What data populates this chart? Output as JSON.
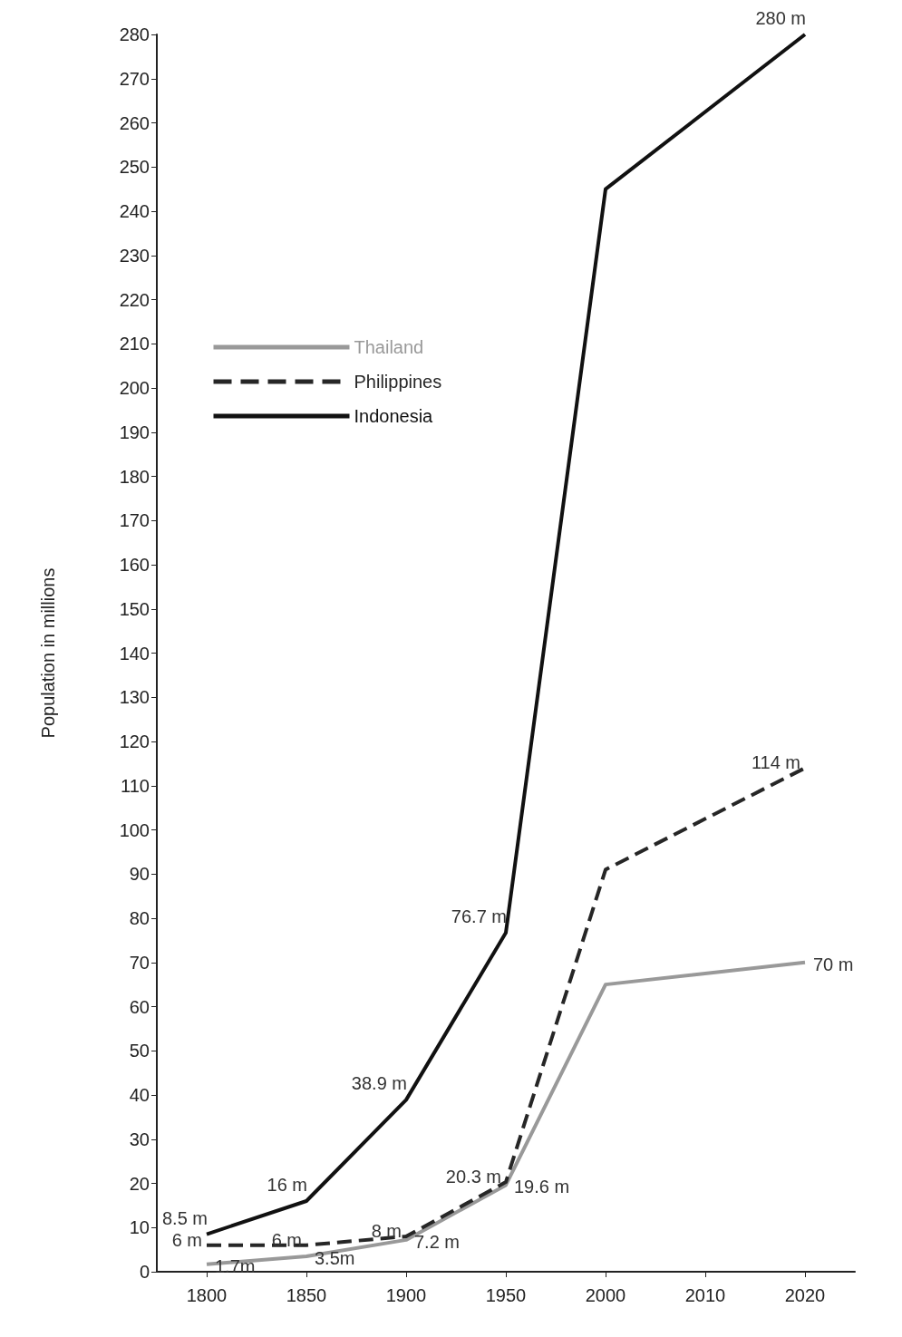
{
  "chart_data": {
    "type": "line",
    "ylabel": "Population in millions",
    "categories": [
      "1800",
      "1850",
      "1900",
      "1950",
      "2000",
      "2010",
      "2020"
    ],
    "series": [
      {
        "name": "Thailand",
        "color": "#999999",
        "line_style": "solid",
        "values": [
          1.7,
          3.5,
          7.2,
          19.6,
          65,
          null,
          70
        ],
        "value_labels": [
          "1.7m",
          "3.5m",
          "7.2 m",
          "19.6 m",
          null,
          null,
          "70 m"
        ]
      },
      {
        "name": "Philippines",
        "color": "#262626",
        "line_style": "dashed",
        "values": [
          6,
          6,
          8,
          20.3,
          91,
          null,
          114
        ],
        "value_labels": [
          "6 m",
          "6 m",
          "8 m",
          "20.3 m",
          null,
          null,
          "114 m"
        ]
      },
      {
        "name": "Indonesia",
        "color": "#111111",
        "line_style": "solid",
        "values": [
          8.5,
          16,
          38.9,
          76.7,
          245,
          null,
          280
        ],
        "value_labels": [
          "8.5 m",
          "16 m",
          "38.9 m",
          "76.7 m",
          null,
          null,
          "280 m"
        ]
      }
    ],
    "ylim": [
      0,
      280
    ],
    "yticks": [
      0,
      10,
      20,
      30,
      40,
      50,
      60,
      70,
      80,
      90,
      100,
      110,
      120,
      130,
      140,
      150,
      160,
      170,
      180,
      190,
      200,
      210,
      220,
      230,
      240,
      250,
      260,
      270,
      280
    ],
    "grid": false,
    "legend": "top left",
    "marker": "none"
  }
}
